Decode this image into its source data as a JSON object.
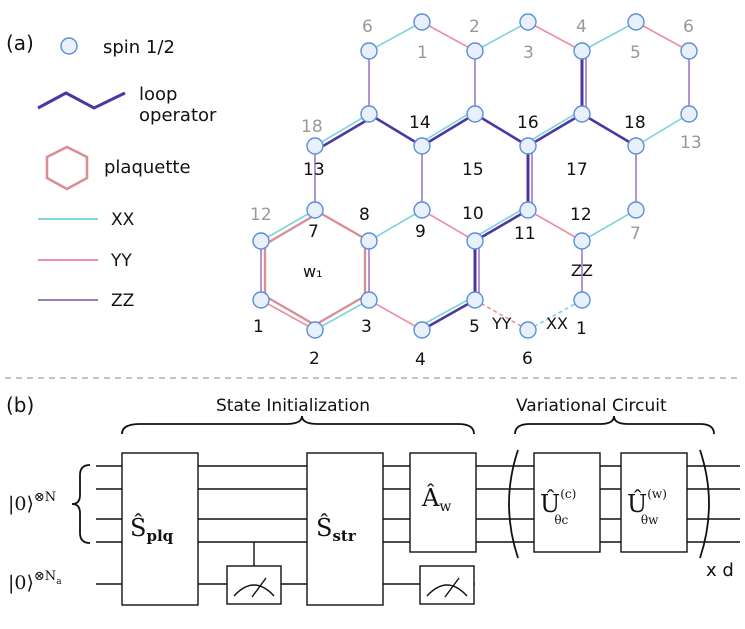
{
  "panel_a": {
    "label": "(a)",
    "legend": {
      "spin": "spin 1/2",
      "loop_line1": "loop",
      "loop_line2": "operator",
      "plaquette": "plaquette",
      "xx": "XX",
      "yy": "YY",
      "zz": "ZZ"
    },
    "plaquette_label": "w₁",
    "site_numbers": {
      "n1": "1",
      "n2": "2",
      "n3": "3",
      "n4": "4",
      "n5": "5",
      "n7": "7",
      "n8": "8",
      "n9": "9",
      "n10": "10",
      "n11": "11",
      "n12": "12",
      "n13": "13",
      "n14": "14",
      "n15": "15",
      "n16": "16",
      "n17": "17",
      "n18": "18"
    },
    "boundary_numbers": {
      "g6a": "6",
      "g1": "1",
      "g2": "2",
      "g3": "3",
      "g4": "4",
      "g5": "5",
      "g6b": "6",
      "g18": "18",
      "g13": "13",
      "g12": "12",
      "g7": "7"
    },
    "bond_labels": {
      "zz": "ZZ",
      "yy": "YY",
      "xx": "XX"
    },
    "extra_sites": {
      "s6": "6",
      "s1": "1"
    },
    "colors": {
      "xx": "#7fd3dc",
      "yy": "#ec8fa2",
      "zz": "#9c7cc8",
      "loop": "#4a37a4",
      "plaquette": "#d98e95",
      "spin_stroke": "#5b8fd6",
      "spin_fill": "#e8f1fb"
    }
  },
  "panel_b": {
    "label": "(b)",
    "state_init": "State Initialization",
    "variational": "Variational Circuit",
    "ket_main": "|0⟩",
    "ket_main_sup": "⊗N",
    "ket_anc": "|0⟩",
    "ket_anc_sup": "⊗N",
    "ket_anc_sub": "a",
    "gate_plq": "Ŝ",
    "gate_plq_sub": "plq",
    "gate_str": "Ŝ",
    "gate_str_sub": "str",
    "gate_aw": "Â",
    "gate_aw_sub": "w",
    "gate_uc": "Û",
    "gate_uc_sup": "(c)",
    "gate_uc_sub": "θc",
    "gate_uw": "Û",
    "gate_uw_sup": "(w)",
    "gate_uw_sub": "θw",
    "repeat": "x d"
  }
}
